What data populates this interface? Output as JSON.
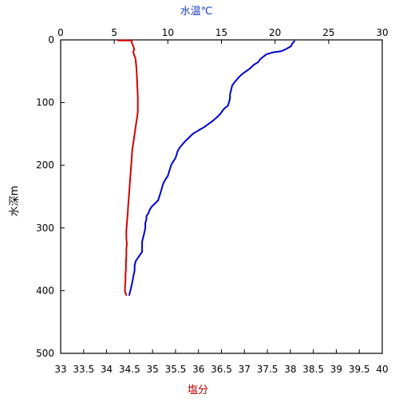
{
  "chart_data": {
    "type": "line",
    "top_axis": {
      "label": "水温℃",
      "color": "#1f3fbf",
      "range": [
        0,
        30
      ],
      "ticks": [
        0,
        5,
        10,
        15,
        20,
        25,
        30
      ],
      "tick_labels": [
        "0",
        "5",
        "10",
        "15",
        "20",
        "25",
        "30"
      ]
    },
    "bottom_axis": {
      "label": "塩分",
      "color": "#c00000",
      "range": [
        33,
        40
      ],
      "ticks": [
        33,
        33.5,
        34,
        34.5,
        35,
        35.5,
        36,
        36.5,
        37,
        37.5,
        38,
        38.5,
        39,
        39.5,
        40
      ],
      "tick_labels": [
        "33",
        "33.5",
        "34",
        "34.5",
        "35",
        "35.5",
        "36",
        "36.5",
        "37",
        "37.5",
        "38",
        "38.5",
        "39",
        "39.5",
        "40"
      ]
    },
    "left_axis": {
      "label": "水深m",
      "color": "#000000",
      "range": [
        0,
        500
      ],
      "inverted": true,
      "ticks": [
        0,
        100,
        200,
        300,
        400,
        500
      ],
      "tick_labels": [
        "0",
        "100",
        "200",
        "300",
        "400",
        "500"
      ]
    },
    "grid": false,
    "legend": "none",
    "series": [
      {
        "axis": "top",
        "color": "#0000cc",
        "points": [
          [
            21.8,
            2
          ],
          [
            21.6,
            6
          ],
          [
            21.5,
            10
          ],
          [
            21.1,
            14
          ],
          [
            20.6,
            18
          ],
          [
            19.8,
            20
          ],
          [
            19.2,
            23
          ],
          [
            18.9,
            27
          ],
          [
            18.6,
            31
          ],
          [
            18.4,
            36
          ],
          [
            18.0,
            40
          ],
          [
            17.7,
            45
          ],
          [
            17.3,
            50
          ],
          [
            16.9,
            55
          ],
          [
            16.6,
            60
          ],
          [
            16.4,
            64
          ],
          [
            16.2,
            68
          ],
          [
            16.0,
            73
          ],
          [
            15.9,
            80
          ],
          [
            15.8,
            87
          ],
          [
            15.8,
            93
          ],
          [
            15.7,
            100
          ],
          [
            15.6,
            105
          ],
          [
            15.3,
            109
          ],
          [
            15.1,
            113
          ],
          [
            14.9,
            118
          ],
          [
            14.6,
            123
          ],
          [
            14.2,
            129
          ],
          [
            13.8,
            134
          ],
          [
            13.4,
            139
          ],
          [
            13.0,
            143
          ],
          [
            12.7,
            146
          ],
          [
            12.4,
            149
          ],
          [
            12.2,
            152
          ],
          [
            11.9,
            157
          ],
          [
            11.6,
            162
          ],
          [
            11.3,
            168
          ],
          [
            11.1,
            172
          ],
          [
            10.9,
            178
          ],
          [
            10.8,
            184
          ],
          [
            10.7,
            189
          ],
          [
            10.5,
            194
          ],
          [
            10.3,
            200
          ],
          [
            10.2,
            206
          ],
          [
            10.1,
            211
          ],
          [
            10.0,
            217
          ],
          [
            9.8,
            222
          ],
          [
            9.6,
            228
          ],
          [
            9.5,
            233
          ],
          [
            9.4,
            239
          ],
          [
            9.3,
            245
          ],
          [
            9.2,
            250
          ],
          [
            9.1,
            256
          ],
          [
            8.8,
            261
          ],
          [
            8.5,
            266
          ],
          [
            8.3,
            271
          ],
          [
            8.2,
            276
          ],
          [
            8.0,
            281
          ],
          [
            8.0,
            286
          ],
          [
            7.9,
            292
          ],
          [
            7.9,
            300
          ],
          [
            7.8,
            308
          ],
          [
            7.7,
            315
          ],
          [
            7.6,
            322
          ],
          [
            7.6,
            330
          ],
          [
            7.6,
            338
          ],
          [
            7.4,
            343
          ],
          [
            7.2,
            348
          ],
          [
            7.0,
            353
          ],
          [
            6.9,
            360
          ],
          [
            6.9,
            368
          ],
          [
            6.8,
            376
          ],
          [
            6.7,
            385
          ],
          [
            6.6,
            393
          ],
          [
            6.5,
            400
          ],
          [
            6.4,
            407
          ]
        ]
      },
      {
        "axis": "bottom",
        "color": "#d40000",
        "points": [
          [
            34.25,
            1
          ],
          [
            34.55,
            1
          ],
          [
            34.55,
            5
          ],
          [
            34.58,
            10
          ],
          [
            34.6,
            15
          ],
          [
            34.58,
            20
          ],
          [
            34.63,
            30
          ],
          [
            34.65,
            45
          ],
          [
            34.66,
            60
          ],
          [
            34.67,
            75
          ],
          [
            34.68,
            90
          ],
          [
            34.68,
            105
          ],
          [
            34.68,
            115
          ],
          [
            34.66,
            125
          ],
          [
            34.64,
            135
          ],
          [
            34.62,
            145
          ],
          [
            34.6,
            155
          ],
          [
            34.58,
            165
          ],
          [
            34.56,
            175
          ],
          [
            34.55,
            185
          ],
          [
            34.54,
            195
          ],
          [
            34.53,
            205
          ],
          [
            34.52,
            215
          ],
          [
            34.51,
            225
          ],
          [
            34.5,
            235
          ],
          [
            34.49,
            245
          ],
          [
            34.48,
            255
          ],
          [
            34.47,
            265
          ],
          [
            34.46,
            275
          ],
          [
            34.45,
            285
          ],
          [
            34.44,
            295
          ],
          [
            34.43,
            305
          ],
          [
            34.43,
            315
          ],
          [
            34.44,
            325
          ],
          [
            34.43,
            335
          ],
          [
            34.43,
            345
          ],
          [
            34.42,
            355
          ],
          [
            34.42,
            365
          ],
          [
            34.41,
            375
          ],
          [
            34.41,
            385
          ],
          [
            34.4,
            395
          ],
          [
            34.4,
            402
          ],
          [
            34.43,
            407
          ]
        ]
      }
    ]
  }
}
